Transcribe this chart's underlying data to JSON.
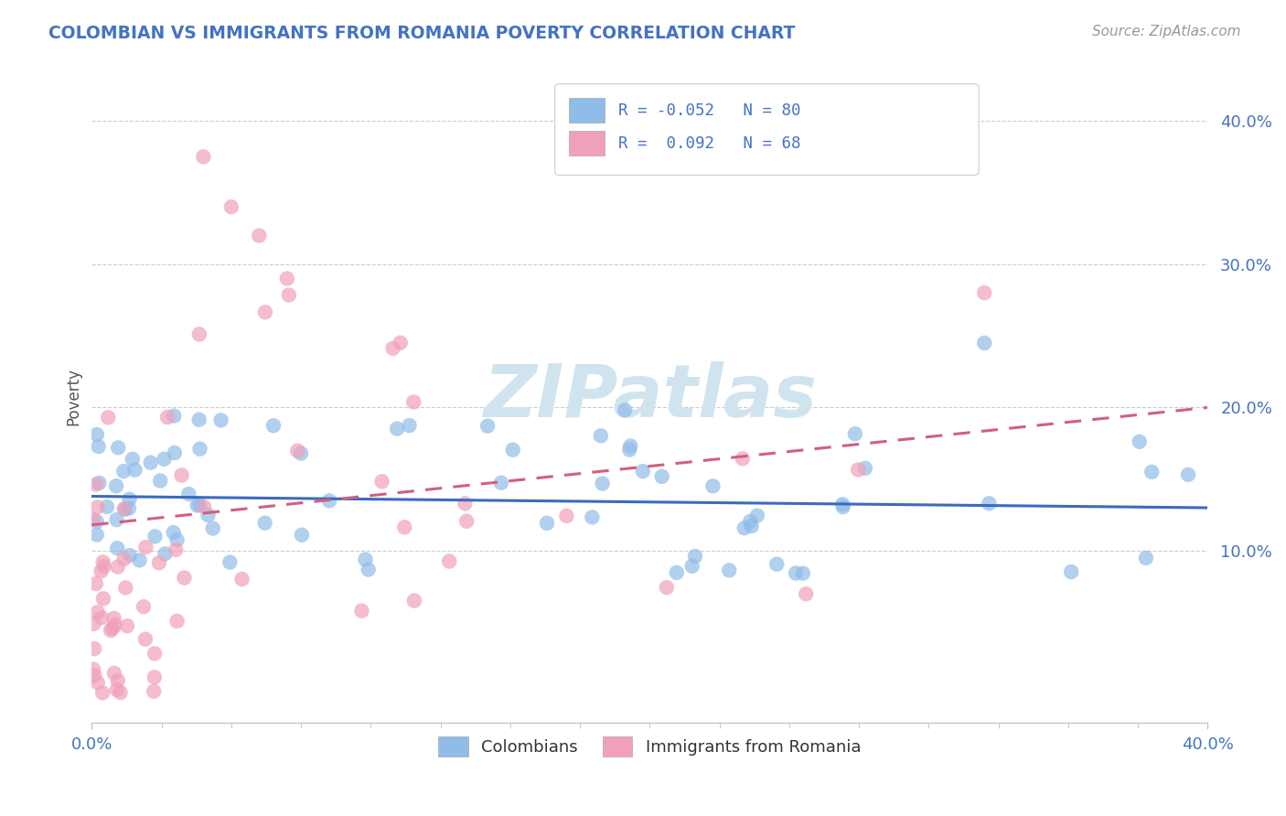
{
  "title": "COLOMBIAN VS IMMIGRANTS FROM ROMANIA POVERTY CORRELATION CHART",
  "source": "Source: ZipAtlas.com",
  "ylabel": "Poverty",
  "y_tick_values": [
    0.1,
    0.2,
    0.3,
    0.4
  ],
  "xlim": [
    0.0,
    0.4
  ],
  "ylim": [
    -0.02,
    0.435
  ],
  "legend_label1": "Colombians",
  "legend_label2": "Immigrants from Romania",
  "color_blue": "#90bce8",
  "color_pink": "#f0a0b8",
  "color_blue_line": "#3a6bbf",
  "color_pink_line": "#d06080",
  "watermark_color": "#d0e4f0",
  "background_color": "#ffffff",
  "grid_color": "#cccccc",
  "title_color": "#4472c4",
  "tick_color": "#4472c4",
  "source_color": "#999999",
  "R1": -0.052,
  "N1": 80,
  "R2": 0.092,
  "N2": 68,
  "blue_trend_start_y": 0.138,
  "blue_trend_end_y": 0.13,
  "pink_trend_start_y": 0.118,
  "pink_trend_end_y": 0.2
}
